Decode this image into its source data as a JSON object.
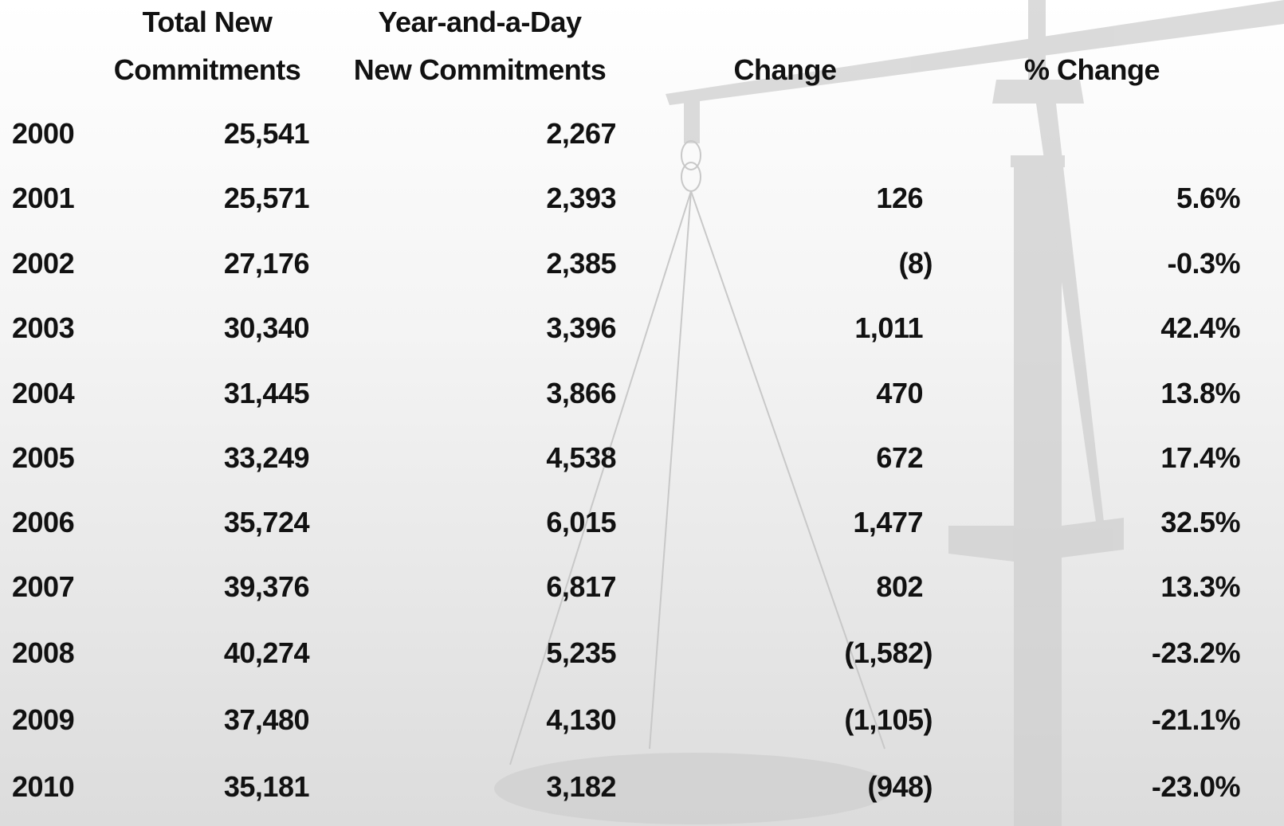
{
  "table": {
    "headers": [
      [
        "Total New",
        "Commitments"
      ],
      [
        "Year-and-a-Day",
        "New Commitments"
      ],
      [
        "Change"
      ],
      [
        "% Change"
      ]
    ],
    "rows": [
      {
        "year": "2000",
        "total": "25,541",
        "year_and_a_day": "2,267"
      },
      {
        "year": "2001",
        "total": "25,571",
        "year_and_a_day": "2,393",
        "change": "126",
        "pct_change": "5.6%"
      },
      {
        "year": "2002",
        "total": "27,176",
        "year_and_a_day": "2,385",
        "change": "(8)",
        "pct_change": "-0.3%"
      },
      {
        "year": "2003",
        "total": "30,340",
        "year_and_a_day": "3,396",
        "change": "1,011",
        "pct_change": "42.4%"
      },
      {
        "year": "2004",
        "total": "31,445",
        "year_and_a_day": "3,866",
        "change": "470",
        "pct_change": "13.8%"
      },
      {
        "year": "2005",
        "total": "33,249",
        "year_and_a_day": "4,538",
        "change": "672",
        "pct_change": "17.4%"
      },
      {
        "year": "2006",
        "total": "35,724",
        "year_and_a_day": "6,015",
        "change": "1,477",
        "pct_change": "32.5%"
      },
      {
        "year": "2007",
        "total": "39,376",
        "year_and_a_day": "6,817",
        "change": "802",
        "pct_change": "13.3%"
      },
      {
        "year": "2008",
        "total": "40,274",
        "year_and_a_day": "5,235",
        "change": "(1,582)",
        "pct_change": "-23.2%"
      },
      {
        "year": "2009",
        "total": "37,480",
        "year_and_a_day": "4,130",
        "change": "(1,105)",
        "pct_change": "-21.1%"
      },
      {
        "year": "2010",
        "total": "35,181",
        "year_and_a_day": "3,182",
        "change": "(948)",
        "pct_change": "-23.0%"
      }
    ]
  }
}
